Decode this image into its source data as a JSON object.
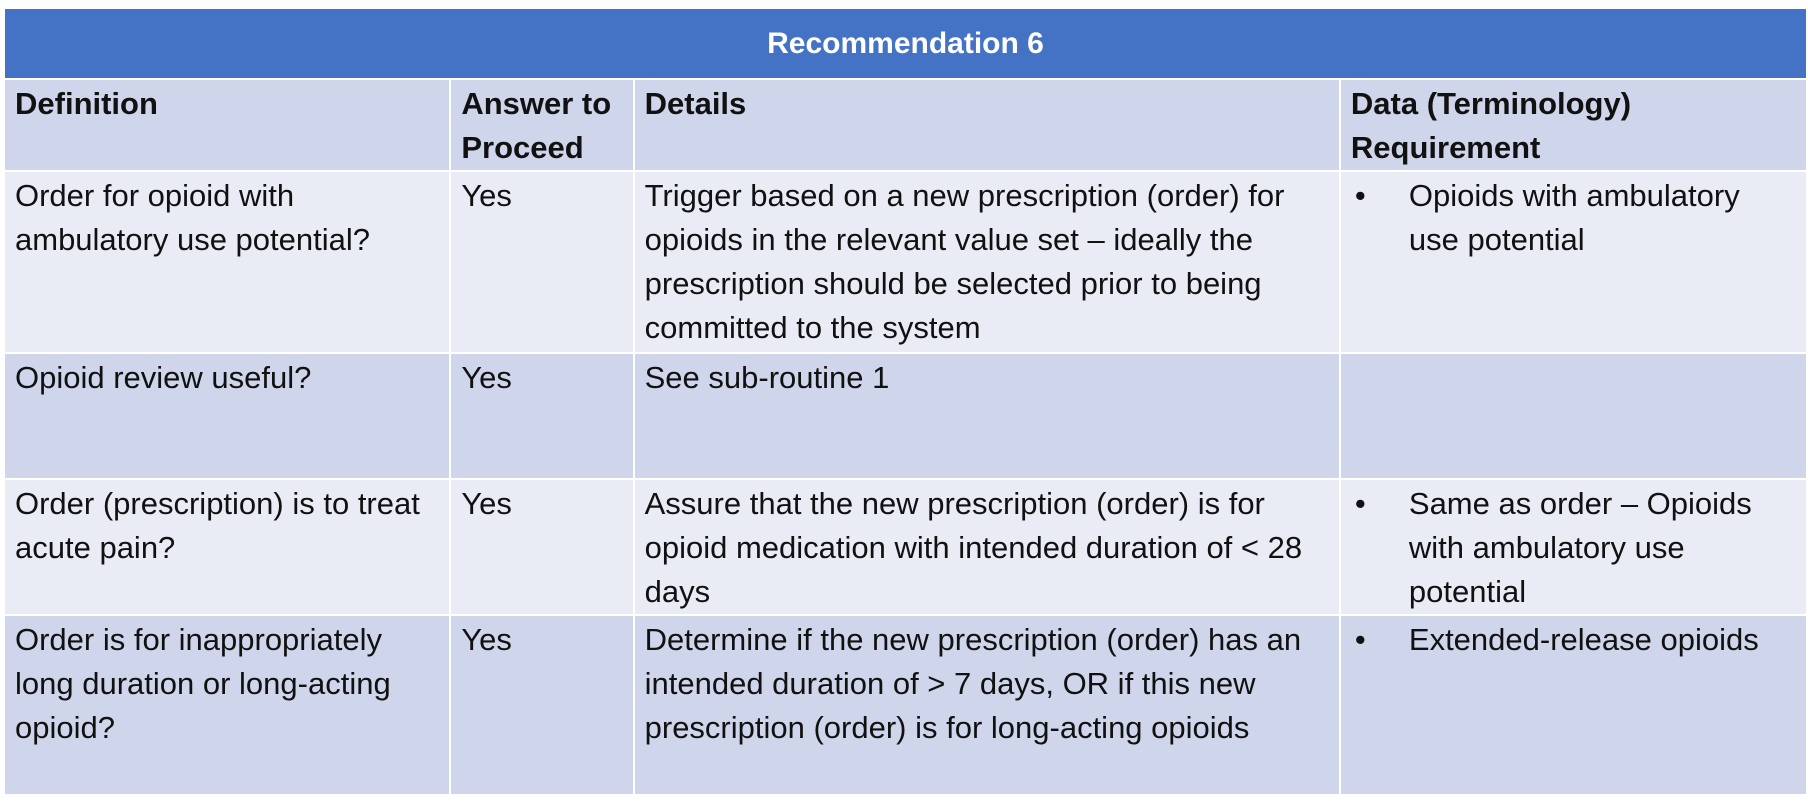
{
  "title": "Recommendation 6",
  "headers": {
    "definition": "Definition",
    "answer": "Answer to Proceed",
    "details": "Details",
    "data": "Data (Terminology) Requirement"
  },
  "rows": [
    {
      "definition": "Order for opioid with ambulatory use potential?",
      "answer": "Yes",
      "details": "Trigger based on a new prescription (order) for opioids in the relevant value set – ideally the prescription should be selected prior to being committed to the system",
      "data": [
        "Opioids with ambulatory use potential"
      ]
    },
    {
      "definition": "Opioid review useful?",
      "answer": "Yes",
      "details": "See sub-routine 1",
      "data": []
    },
    {
      "definition": "Order (prescription) is to treat acute pain?",
      "answer": "Yes",
      "details": "Assure that the new prescription (order) is for opioid medication with intended duration of < 28 days",
      "data": [
        "Same as order – Opioids with ambulatory use potential"
      ]
    },
    {
      "definition": "Order is for inappropriately long duration or long-acting opioid?",
      "answer": "Yes",
      "details": "Determine if the new prescription (order) has an intended duration of > 7 days, OR if this new prescription (order) is for long-acting opioids",
      "data": [
        "Extended-release opioids"
      ]
    }
  ],
  "colors": {
    "title_bg": "#4472c4",
    "header_bg": "#cfd5ea",
    "row_light": "#e9ebf5",
    "row_dark": "#cfd5ea"
  }
}
